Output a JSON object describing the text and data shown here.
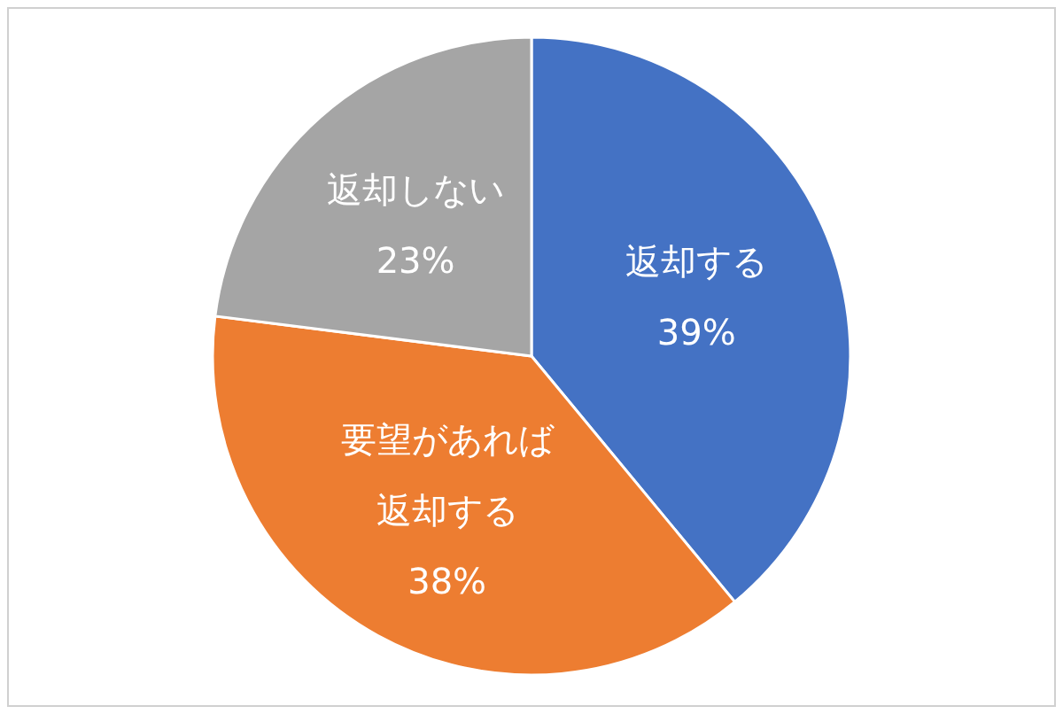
{
  "chart_data": {
    "type": "pie",
    "categories": [
      "返却する",
      "要望があれば返却する",
      "返却しない"
    ],
    "values": [
      39,
      38,
      23
    ],
    "colors": [
      "#4472c4",
      "#ed7d31",
      "#a5a5a5"
    ],
    "value_labels": [
      "39%",
      "38%",
      "23%"
    ]
  }
}
